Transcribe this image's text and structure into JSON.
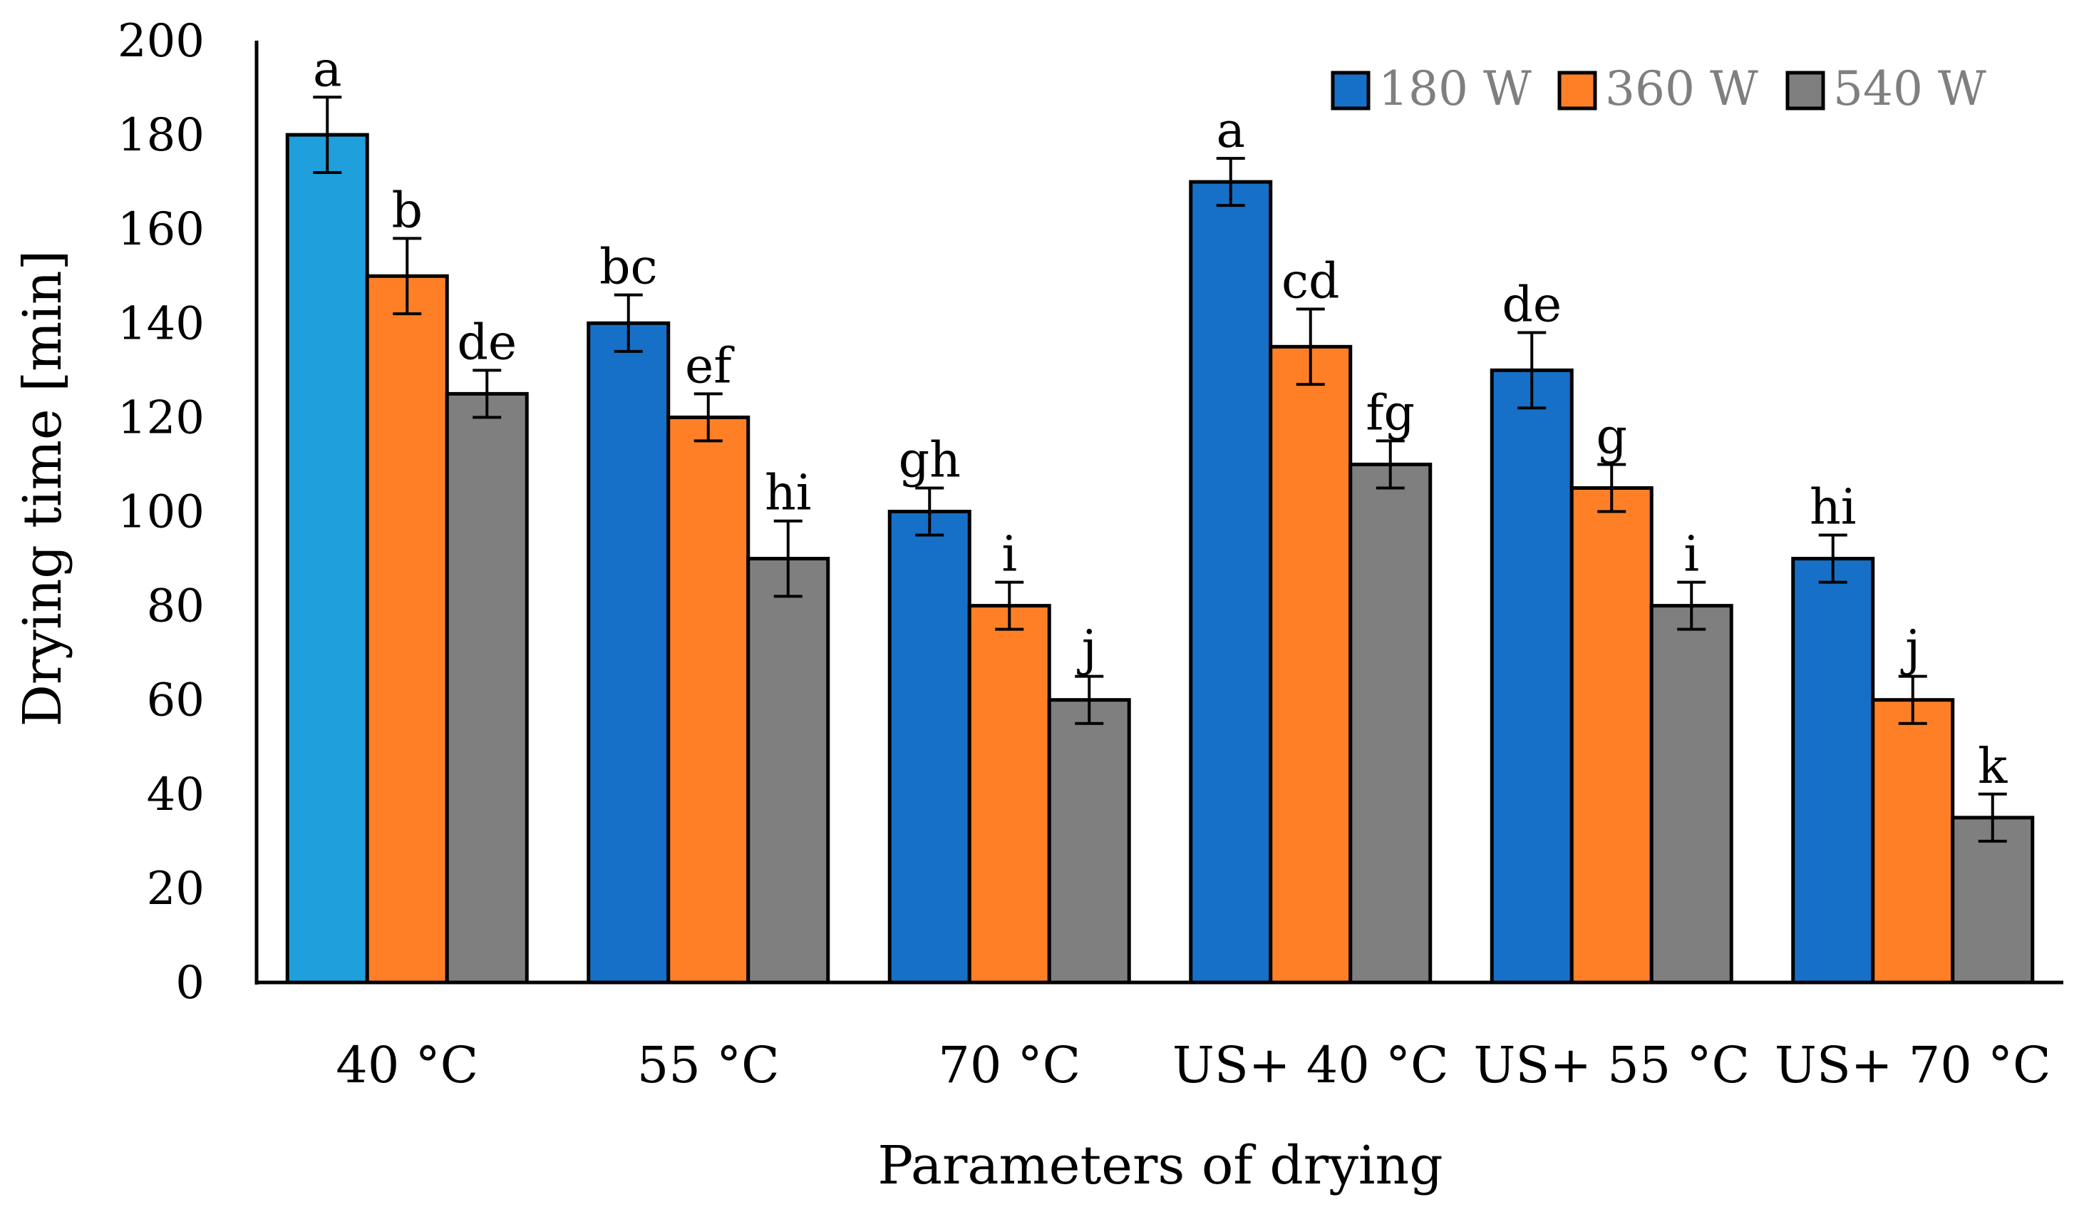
{
  "chart_data": {
    "type": "bar",
    "title": "",
    "xlabel": "Parameters of drying",
    "ylabel": "Drying time [min]",
    "ylim": [
      0,
      200
    ],
    "yticks": [
      0,
      20,
      40,
      60,
      80,
      100,
      120,
      140,
      160,
      180,
      200
    ],
    "grid": false,
    "legend_position": "top-right",
    "categories": [
      "40 °C",
      "55 °C",
      "70 °C",
      "US+ 40 °C",
      "US+ 55 °C",
      "US+ 70 °C"
    ],
    "series": [
      {
        "name": "180 W",
        "color": "#1770C8",
        "values": [
          180,
          140,
          100,
          170,
          130,
          90
        ],
        "errors": [
          8,
          6,
          5,
          5,
          8,
          5
        ],
        "labels": [
          "a",
          "bc",
          "gh",
          "a",
          "de",
          "hi"
        ],
        "point_colors": [
          "#1F9FDB",
          null,
          null,
          null,
          null,
          null
        ]
      },
      {
        "name": "360 W",
        "color": "#FF7F27",
        "values": [
          150,
          120,
          80,
          135,
          105,
          60
        ],
        "errors": [
          8,
          5,
          5,
          8,
          5,
          5
        ],
        "labels": [
          "b",
          "ef",
          "i",
          "cd",
          "g",
          "j"
        ]
      },
      {
        "name": "540 W",
        "color": "#7F7F7F",
        "values": [
          125,
          90,
          60,
          110,
          80,
          35
        ],
        "errors": [
          5,
          8,
          5,
          5,
          5,
          5
        ],
        "labels": [
          "de",
          "hi",
          "j",
          "fg",
          "i",
          "k"
        ]
      }
    ]
  }
}
